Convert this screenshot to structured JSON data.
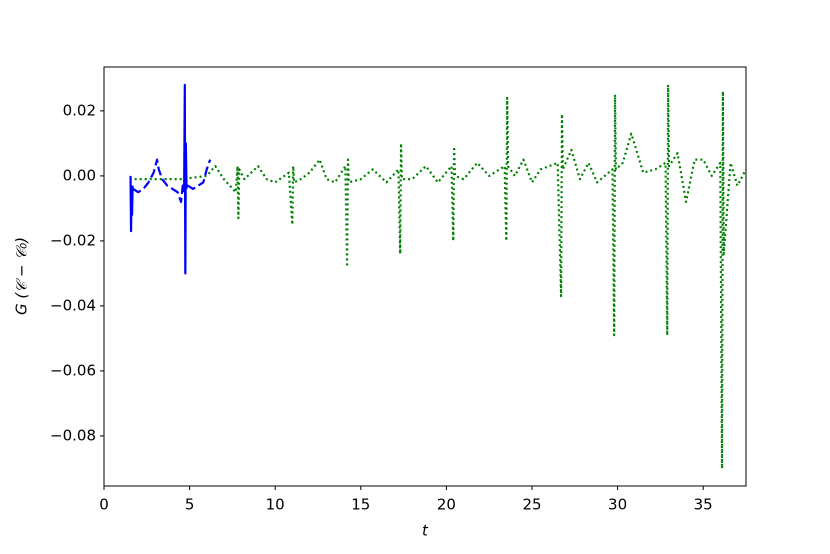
{
  "chart_data": {
    "type": "line",
    "xlabel": "t",
    "ylabel": "G (𝒞 − 𝒞₀)",
    "xlim": [
      0,
      37.5
    ],
    "ylim": [
      -0.0954,
      0.0335
    ],
    "xticks": [
      0,
      5,
      10,
      15,
      20,
      25,
      30,
      35
    ],
    "yticks": [
      {
        "value": -0.08,
        "label": "−0.08"
      },
      {
        "value": -0.06,
        "label": "−0.06"
      },
      {
        "value": -0.04,
        "label": "−0.04"
      },
      {
        "value": -0.02,
        "label": "−0.02"
      },
      {
        "value": 0,
        "label": "0.00"
      },
      {
        "value": 0.02,
        "label": "0.02"
      }
    ],
    "series": [
      {
        "color": "#0000ff",
        "dash": "solid",
        "x": [
          1.55,
          1.58,
          1.61,
          1.64,
          1.67,
          3.0,
          4.68,
          4.72,
          4.75,
          4.78,
          4.82
        ],
        "values": [
          0.0,
          -0.017,
          -0.005,
          -0.012,
          -0.003,
          null,
          -0.005,
          0.028,
          -0.03,
          0.01,
          -0.004
        ]
      },
      {
        "color": "#0000ff",
        "dash": "dashed",
        "x": [
          1.7,
          2.0,
          2.3,
          2.6,
          2.9,
          3.1,
          3.2,
          3.4,
          3.7,
          4.0,
          4.3,
          4.5,
          4.6,
          4.9,
          5.2,
          5.5,
          5.8,
          6.0,
          6.2
        ],
        "values": [
          -0.004,
          -0.005,
          -0.004,
          -0.002,
          0.001,
          0.005,
          0.002,
          -0.001,
          -0.003,
          -0.004,
          -0.005,
          -0.008,
          -0.003,
          -0.003,
          -0.004,
          -0.003,
          -0.002,
          0.002,
          0.005
        ]
      },
      {
        "color": "#008000",
        "dash": "dotted",
        "x": [
          1.5,
          3,
          4.5,
          6,
          6.5,
          7,
          7.7,
          7.8,
          7.85,
          7.9,
          8.2,
          9,
          9.5,
          10,
          10.8,
          11,
          11.05,
          11.1,
          11.5,
          12,
          12.6,
          13,
          13.5,
          14.1,
          14.2,
          14.25,
          14.3,
          15,
          15.7,
          16.5,
          17.2,
          17.3,
          17.35,
          17.4,
          18,
          18.8,
          19.5,
          20.3,
          20.4,
          20.45,
          20.5,
          21,
          21.8,
          22.5,
          23.4,
          23.5,
          23.55,
          23.6,
          24,
          24.5,
          25,
          25.5,
          26.5,
          26.7,
          26.75,
          26.8,
          27.3,
          27.8,
          28.3,
          28.8,
          29.7,
          29.8,
          29.85,
          29.9,
          30.3,
          30.8,
          31.5,
          32.2,
          32.8,
          32.9,
          32.95,
          33,
          33.5,
          34,
          34.5,
          35,
          35.5,
          36.0,
          36.1,
          36.15,
          36.2,
          36.6,
          37.0,
          37.5
        ],
        "values": [
          -0.001,
          -0.001,
          -0.001,
          0.0,
          0.003,
          -0.001,
          -0.005,
          0.003,
          -0.013,
          0.002,
          -0.001,
          0.003,
          -0.001,
          -0.002,
          0.001,
          -0.015,
          0.003,
          -0.002,
          -0.001,
          0.001,
          0.005,
          -0.001,
          -0.002,
          0.003,
          -0.028,
          0.005,
          -0.002,
          -0.001,
          0.002,
          -0.002,
          0.002,
          -0.024,
          0.01,
          -0.001,
          -0.001,
          0.003,
          -0.002,
          0.003,
          -0.02,
          0.009,
          0.0,
          -0.001,
          0.004,
          0.0,
          0.003,
          -0.02,
          0.024,
          0.003,
          0.0,
          0.005,
          -0.002,
          0.002,
          0.004,
          -0.037,
          0.019,
          0.002,
          0.008,
          -0.001,
          0.004,
          -0.002,
          0.002,
          -0.049,
          0.025,
          0.002,
          0.004,
          0.013,
          0.001,
          0.002,
          0.004,
          -0.049,
          0.028,
          0.003,
          0.007,
          -0.008,
          0.005,
          0.005,
          0.0,
          0.004,
          -0.09,
          0.026,
          -0.024,
          0.004,
          -0.003,
          0.002
        ]
      }
    ]
  }
}
